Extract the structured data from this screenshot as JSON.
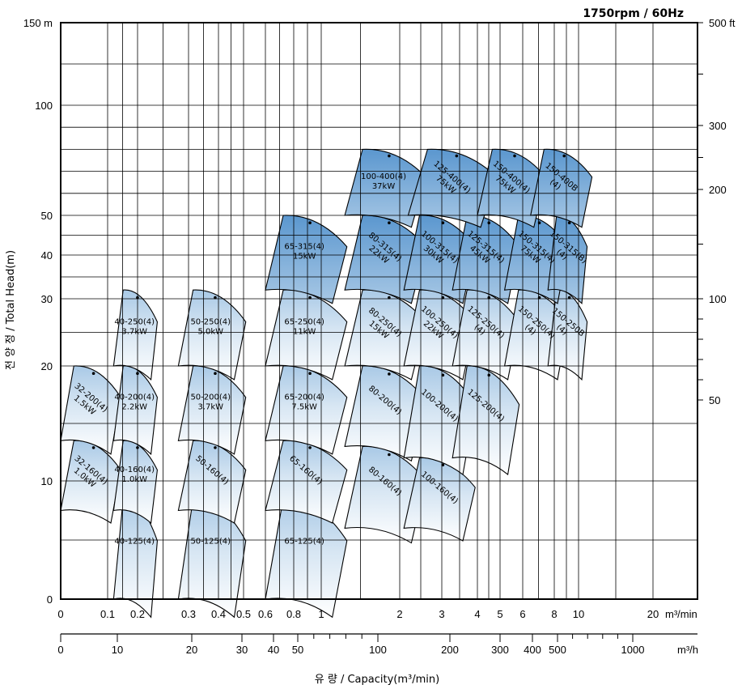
{
  "chart_data": {
    "type": "pump-performance-range",
    "title": "1750rpm / 60Hz",
    "ylabel": "전 양 정 / Total Head(m)",
    "xlabel": "유 량 / Capacity(m³/min)",
    "x_unit_top": "m³/min",
    "x_unit_bottom": "m³/h",
    "y_unit_left": "m",
    "y_unit_right": "ft",
    "y_left_ticks": [
      {
        "label": "150 m",
        "value": 150
      },
      {
        "label": "100",
        "value": 100
      },
      {
        "label": "50",
        "value": 50
      },
      {
        "label": "40",
        "value": 40
      },
      {
        "label": "30",
        "value": 30
      },
      {
        "label": "20",
        "value": 20
      },
      {
        "label": "10",
        "value": 10
      },
      {
        "label": "0",
        "value": 0
      }
    ],
    "y_right_ticks": [
      {
        "label": "500 ft",
        "value": 500
      },
      {
        "label": "300",
        "value": 300
      },
      {
        "label": "200",
        "value": 200
      },
      {
        "label": "100",
        "value": 100
      },
      {
        "label": "50",
        "value": 50
      }
    ],
    "x_top_ticks": [
      {
        "label": "0",
        "value": 0
      },
      {
        "label": "0.1",
        "value": 0.1
      },
      {
        "label": "0.2",
        "value": 0.2
      },
      {
        "label": "0.3",
        "value": 0.3
      },
      {
        "label": "0.4",
        "value": 0.4
      },
      {
        "label": "0.5",
        "value": 0.5
      },
      {
        "label": "0.6",
        "value": 0.6
      },
      {
        "label": "0.8",
        "value": 0.8
      },
      {
        "label": "1",
        "value": 1
      },
      {
        "label": "2",
        "value": 2
      },
      {
        "label": "3",
        "value": 3
      },
      {
        "label": "4",
        "value": 4
      },
      {
        "label": "5",
        "value": 5
      },
      {
        "label": "6",
        "value": 6
      },
      {
        "label": "8",
        "value": 8
      },
      {
        "label": "10",
        "value": 10
      },
      {
        "label": "20",
        "value": 20
      }
    ],
    "x_bottom_ticks": [
      {
        "label": "0",
        "value": 0
      },
      {
        "label": "10",
        "value": 10
      },
      {
        "label": "20",
        "value": 20
      },
      {
        "label": "30",
        "value": 30
      },
      {
        "label": "40",
        "value": 40
      },
      {
        "label": "50",
        "value": 50
      },
      {
        "label": "100",
        "value": 100
      },
      {
        "label": "200",
        "value": 200
      },
      {
        "label": "300",
        "value": 300
      },
      {
        "label": "400",
        "value": 400
      },
      {
        "label": "500",
        "value": 500
      },
      {
        "label": "1000",
        "value": 1000
      }
    ],
    "zones": [
      {
        "label": [
          "40-125(4)"
        ],
        "q": [
          0.12,
          0.22
        ],
        "h": [
          0,
          8.5
        ]
      },
      {
        "label": [
          "50-125(4)"
        ],
        "q": [
          0.28,
          0.45
        ],
        "h": [
          0,
          8.5
        ]
      },
      {
        "label": [
          "65-125(4)"
        ],
        "q": [
          0.6,
          1.1
        ],
        "h": [
          0,
          8.5
        ]
      },
      {
        "label": [
          "32-160(4)",
          "1.0kW"
        ],
        "q": [
          0,
          0.1
        ],
        "h": [
          7.5,
          13.5
        ],
        "rot": 40
      },
      {
        "label": [
          "40-160(4)",
          "1.0kW"
        ],
        "q": [
          0.12,
          0.22
        ],
        "h": [
          7.5,
          13.5
        ]
      },
      {
        "label": [
          "50-160(4)"
        ],
        "q": [
          0.28,
          0.45
        ],
        "h": [
          7.5,
          13.5
        ],
        "rot": 40
      },
      {
        "label": [
          "65-160(4)"
        ],
        "q": [
          0.6,
          1.1
        ],
        "h": [
          7.5,
          13.5
        ],
        "rot": 40
      },
      {
        "label": [
          "80-160(4)"
        ],
        "q": [
          1.3,
          2.2
        ],
        "h": [
          6,
          13
        ],
        "rot": 40
      },
      {
        "label": [
          "100-160(4)"
        ],
        "q": [
          2.1,
          3.5
        ],
        "h": [
          6,
          12
        ],
        "rot": 40
      },
      {
        "label": [
          "32-200(4)",
          "1.5kW"
        ],
        "q": [
          0,
          0.1
        ],
        "h": [
          13.5,
          20
        ],
        "rot": 40
      },
      {
        "label": [
          "40-200(4)",
          "2.2kW"
        ],
        "q": [
          0.12,
          0.22
        ],
        "h": [
          13.5,
          20
        ]
      },
      {
        "label": [
          "50-200(4)",
          "3.7kW"
        ],
        "q": [
          0.28,
          0.45
        ],
        "h": [
          13.5,
          20
        ]
      },
      {
        "label": [
          "65-200(4)",
          "7.5kW"
        ],
        "q": [
          0.6,
          1.1
        ],
        "h": [
          13.5,
          20
        ]
      },
      {
        "label": [
          "80-200(4)"
        ],
        "q": [
          1.3,
          2.2
        ],
        "h": [
          13,
          20
        ],
        "rot": 40
      },
      {
        "label": [
          "100-200(4)"
        ],
        "q": [
          2.1,
          3.5
        ],
        "h": [
          12,
          20
        ],
        "rot": 40
      },
      {
        "label": [
          "125-200(4)"
        ],
        "q": [
          3.3,
          5.2
        ],
        "h": [
          12,
          20
        ],
        "rot": 40
      },
      {
        "label": [
          "40-250(4)",
          "3.7kW"
        ],
        "q": [
          0.12,
          0.22
        ],
        "h": [
          20,
          32
        ]
      },
      {
        "label": [
          "50-250(4)",
          "5.0kW"
        ],
        "q": [
          0.28,
          0.45
        ],
        "h": [
          20,
          32
        ]
      },
      {
        "label": [
          "65-250(4)",
          "11kW"
        ],
        "q": [
          0.6,
          1.1
        ],
        "h": [
          20,
          32
        ]
      },
      {
        "label": [
          "80-250(4)",
          "15kW"
        ],
        "q": [
          1.3,
          2.2
        ],
        "h": [
          20,
          32
        ],
        "rot": 40
      },
      {
        "label": [
          "100-250(4)",
          "22kW"
        ],
        "q": [
          2.1,
          3.5
        ],
        "h": [
          20,
          32
        ],
        "rot": 40
      },
      {
        "label": [
          "125-250(4)",
          "(4)"
        ],
        "q": [
          3.3,
          5.2
        ],
        "h": [
          20,
          32
        ],
        "rot": 40
      },
      {
        "label": [
          "150-250(4)",
          "(4)"
        ],
        "q": [
          5.2,
          8
        ],
        "h": [
          20,
          32
        ],
        "rot": 40
      },
      {
        "label": [
          "150-250B",
          "(4)"
        ],
        "q": [
          7.6,
          10
        ],
        "h": [
          20,
          32
        ],
        "rot": 40
      },
      {
        "label": [
          "65-315(4)",
          "15kW"
        ],
        "q": [
          0.6,
          1.1
        ],
        "h": [
          32,
          50
        ]
      },
      {
        "label": [
          "80-315(4)",
          "22kW"
        ],
        "q": [
          1.3,
          2.2
        ],
        "h": [
          32,
          50
        ],
        "rot": 40
      },
      {
        "label": [
          "100-315(4)",
          "30kW"
        ],
        "q": [
          2.1,
          3.5
        ],
        "h": [
          32,
          50
        ],
        "rot": 40
      },
      {
        "label": [
          "125-315(4)",
          "45kW"
        ],
        "q": [
          3.3,
          5.2
        ],
        "h": [
          32,
          50
        ],
        "rot": 40
      },
      {
        "label": [
          "150-315(4)",
          "75kW"
        ],
        "q": [
          5.2,
          8
        ],
        "h": [
          32,
          50
        ],
        "rot": 40
      },
      {
        "label": [
          "150-315(B)",
          "(4)"
        ],
        "q": [
          7.6,
          10
        ],
        "h": [
          32,
          50
        ],
        "rot": 40
      },
      {
        "label": [
          "100-400(4)",
          "37kW"
        ],
        "q": [
          1.3,
          2.2
        ],
        "h": [
          50,
          80
        ]
      },
      {
        "label": [
          "125-400(4)",
          "75kW"
        ],
        "q": [
          2.2,
          4
        ],
        "h": [
          50,
          80
        ],
        "rot": 40
      },
      {
        "label": [
          "150-400(4)",
          "75kW"
        ],
        "q": [
          4,
          6.5
        ],
        "h": [
          50,
          80
        ],
        "rot": 40
      },
      {
        "label": [
          "150-400B",
          "(4)"
        ],
        "q": [
          6.5,
          10
        ],
        "h": [
          50,
          80
        ],
        "rot": 40
      }
    ]
  }
}
